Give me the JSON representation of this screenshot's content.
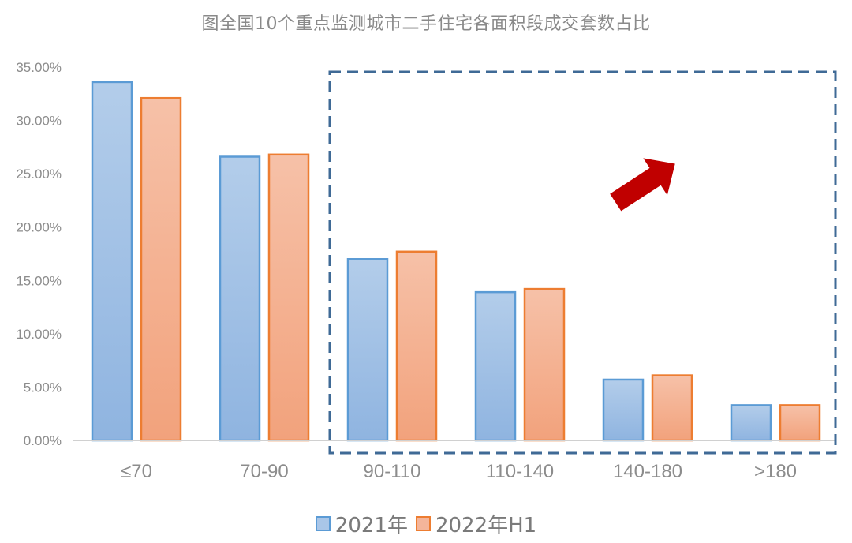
{
  "title": "图全国10个重点监测城市二手住宅各面积段成交套数占比",
  "chart_data": {
    "type": "bar",
    "title": "图全国10个重点监测城市二手住宅各面积段成交套数占比",
    "xlabel": "",
    "ylabel": "",
    "categories": [
      "≤70",
      "70-90",
      "90-110",
      "110-140",
      "140-180",
      ">180"
    ],
    "series": [
      {
        "name": "2021年",
        "color": "#5b9bd5",
        "fill": "#a9c6e8",
        "values": [
          33.6,
          26.6,
          17.0,
          13.9,
          5.7,
          3.3
        ]
      },
      {
        "name": "2022年H1",
        "color": "#ed7d31",
        "fill": "#f4b59a",
        "values": [
          32.1,
          26.8,
          17.7,
          14.2,
          6.1,
          3.3
        ]
      }
    ],
    "ylim": [
      0,
      35
    ],
    "yticks": [
      "0.00%",
      "5.00%",
      "10.00%",
      "15.00%",
      "20.00%",
      "25.00%",
      "30.00%",
      "35.00%"
    ],
    "grid": false,
    "legend_position": "bottom",
    "annotations": [
      {
        "type": "dashed-rectangle",
        "color": "#3f6a96",
        "covers": [
          "90-110",
          "110-140",
          "140-180",
          ">180"
        ]
      },
      {
        "type": "arrow",
        "direction": "up-right",
        "color": "#c00000"
      }
    ]
  },
  "legend": [
    {
      "label": "2021年",
      "border": "#5b9bd5",
      "fill": "#a9c6e8"
    },
    {
      "label": "2022年H1",
      "border": "#ed7d31",
      "fill": "#f4b59a"
    }
  ]
}
